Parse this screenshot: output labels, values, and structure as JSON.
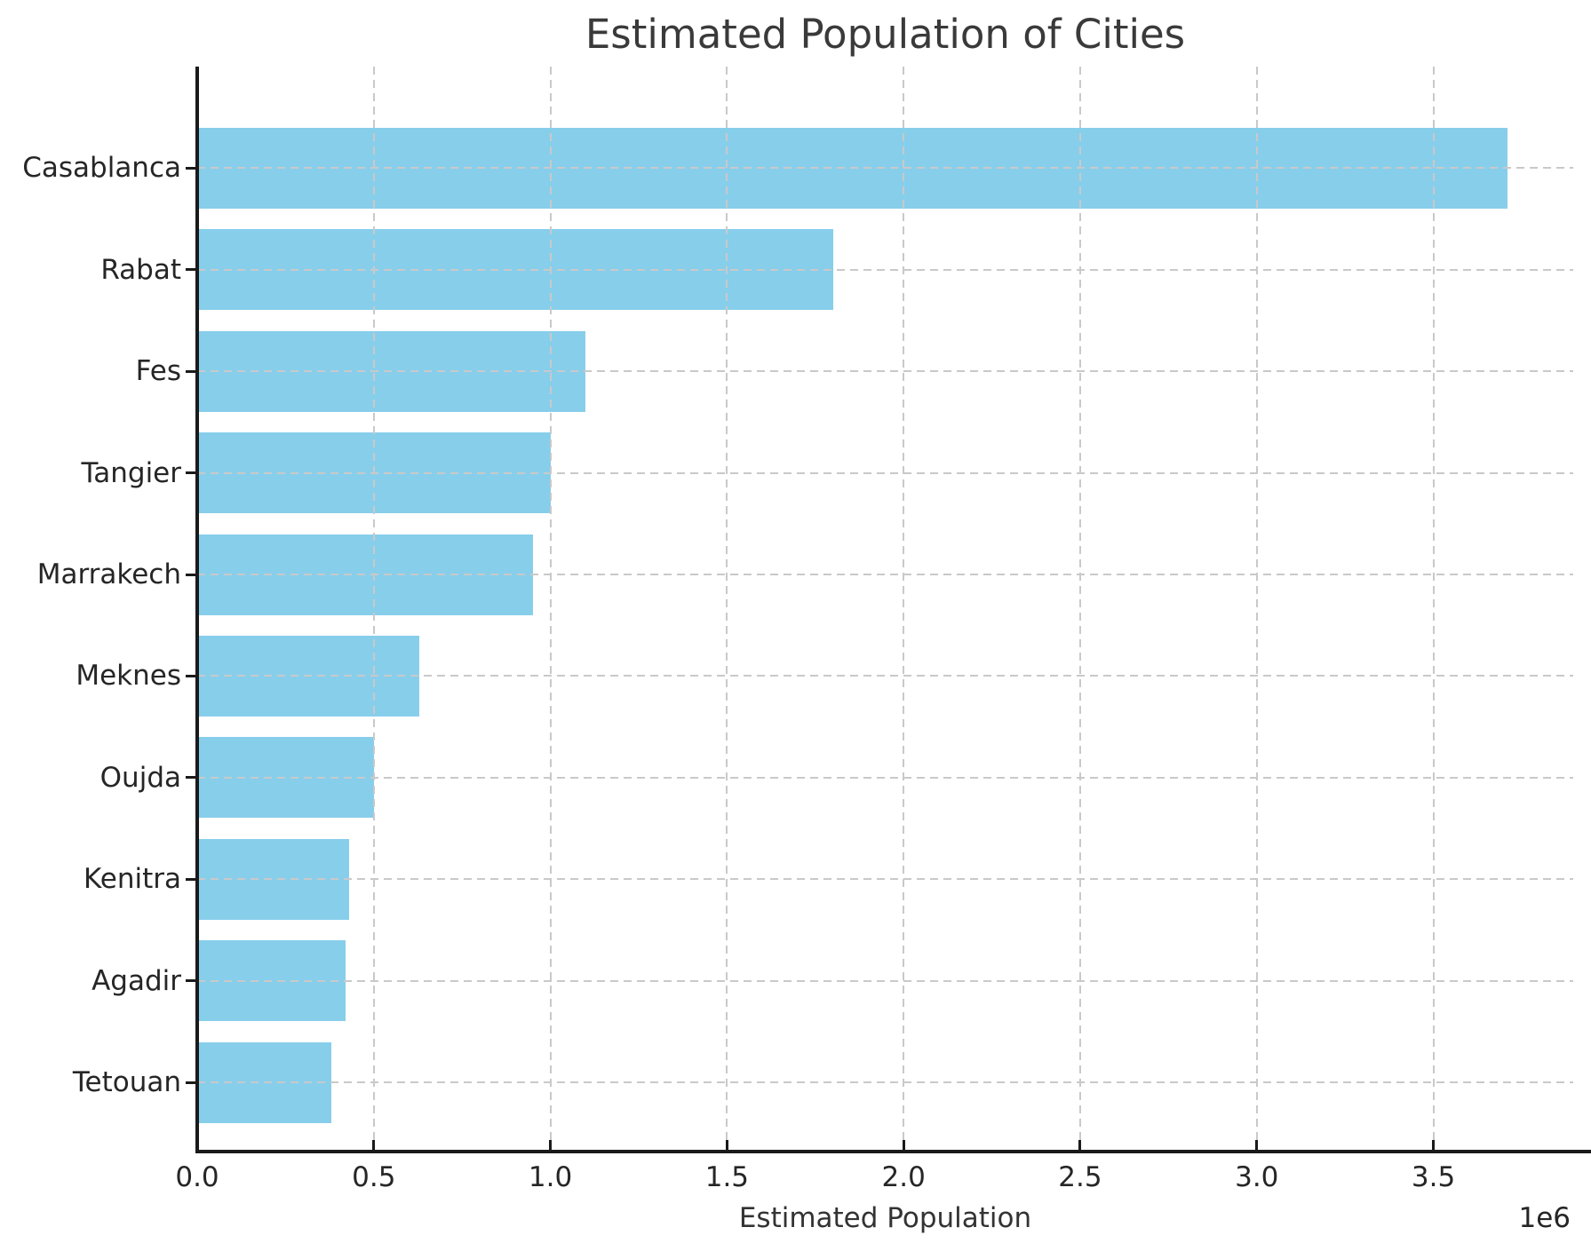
{
  "chart_data": {
    "type": "bar",
    "orientation": "horizontal",
    "title": "Estimated Population of Cities",
    "xlabel": "Estimated Population",
    "ylabel": "",
    "categories": [
      "Casablanca",
      "Rabat",
      "Fes",
      "Tangier",
      "Marrakech",
      "Meknes",
      "Oujda",
      "Kenitra",
      "Agadir",
      "Tetouan"
    ],
    "values": [
      3710000,
      1800000,
      1100000,
      1000000,
      950000,
      630000,
      500000,
      430000,
      420000,
      380000
    ],
    "xlim": [
      0,
      3896000
    ],
    "xticks": [
      0,
      500000,
      1000000,
      1500000,
      2000000,
      2500000,
      3000000,
      3500000
    ],
    "xtick_labels": [
      "0.0",
      "0.5",
      "1.0",
      "1.5",
      "2.0",
      "2.5",
      "3.0",
      "3.5"
    ],
    "offset_label": "1e6",
    "bar_color": "#87CEEB",
    "grid": true,
    "grid_color": "#c9c9c9",
    "grid_style": "dashed",
    "legend_position": "none"
  }
}
